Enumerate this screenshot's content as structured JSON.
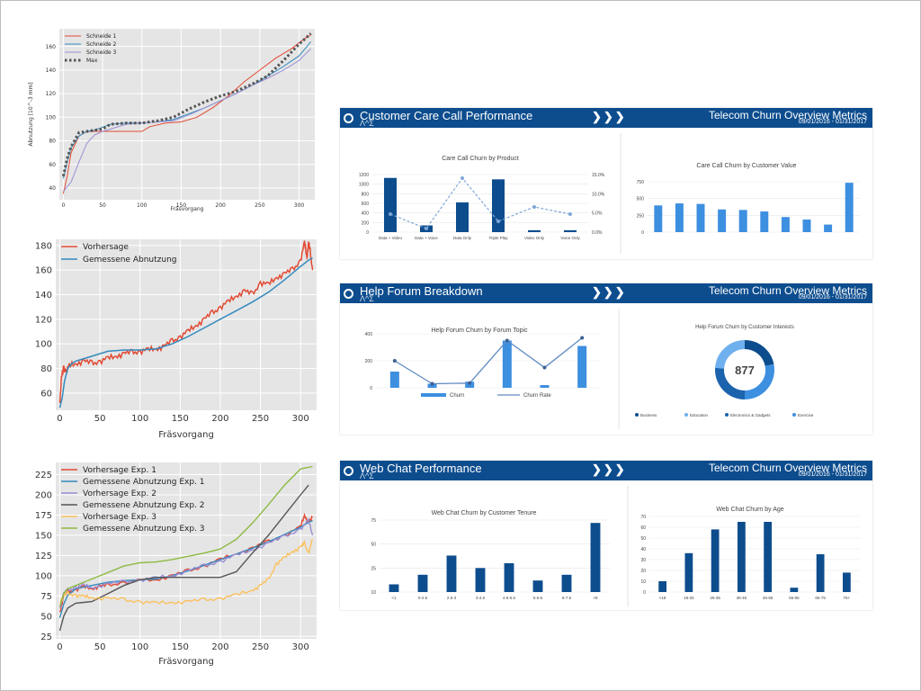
{
  "colors": {
    "plot_bg": "#e5e5e5",
    "grid": "#ffffff",
    "red": "#e24a33",
    "blue": "#348abd",
    "purple": "#988ed5",
    "gray": "#555555",
    "yellow": "#fbc15e",
    "green": "#8eba42",
    "dash_dark": "#0d4d8e",
    "dash_light": "#3d8fe0"
  },
  "chart_data": [
    {
      "type": "line",
      "xlabel": "Fräsvorgang",
      "ylabel": "Abnutzung [10^-3 mm]",
      "xlim": [
        -5,
        320
      ],
      "ylim": [
        30,
        175
      ],
      "xticks": [
        0,
        50,
        100,
        150,
        200,
        250,
        300
      ],
      "yticks": [
        40,
        60,
        80,
        100,
        120,
        140,
        160
      ],
      "legend": "top-left",
      "series": [
        {
          "name": "Schneide 1",
          "color": "red",
          "style": "solid",
          "x": [
            0,
            5,
            10,
            20,
            30,
            50,
            60,
            80,
            100,
            110,
            130,
            150,
            170,
            190,
            210,
            230,
            250,
            270,
            290,
            300,
            310,
            315
          ],
          "y": [
            35,
            50,
            70,
            84,
            88,
            88,
            88,
            88,
            88,
            92,
            95,
            96,
            100,
            108,
            118,
            130,
            140,
            150,
            158,
            163,
            168,
            170
          ]
        },
        {
          "name": "Schneide 2",
          "color": "blue",
          "style": "solid",
          "x": [
            0,
            5,
            10,
            20,
            30,
            40,
            60,
            80,
            100,
            120,
            140,
            160,
            180,
            200,
            220,
            240,
            260,
            280,
            300,
            310,
            315
          ],
          "y": [
            48,
            62,
            74,
            84,
            88,
            89,
            94,
            95,
            95,
            96,
            98,
            103,
            108,
            114,
            120,
            127,
            135,
            143,
            152,
            160,
            164
          ]
        },
        {
          "name": "Schneide 3",
          "color": "purple",
          "style": "solid",
          "x": [
            0,
            10,
            20,
            30,
            40,
            50,
            60,
            80,
            100,
            120,
            140,
            160,
            180,
            200,
            220,
            240,
            260,
            280,
            300,
            310,
            315
          ],
          "y": [
            37,
            45,
            62,
            78,
            85,
            88,
            90,
            94,
            95,
            96,
            97,
            102,
            108,
            114,
            120,
            127,
            133,
            140,
            148,
            155,
            158
          ]
        },
        {
          "name": "Max",
          "color": "gray",
          "style": "dots",
          "x": [
            0,
            5,
            10,
            20,
            30,
            50,
            60,
            80,
            100,
            120,
            140,
            160,
            180,
            200,
            210,
            220,
            240,
            260,
            280,
            290,
            300,
            310,
            315
          ],
          "y": [
            50,
            65,
            75,
            87,
            88,
            90,
            94,
            95,
            95,
            97,
            100,
            107,
            113,
            118,
            120,
            122,
            128,
            135,
            148,
            155,
            162,
            168,
            171
          ]
        }
      ]
    },
    {
      "type": "line",
      "xlabel": "Fräsvorgang",
      "xlim": [
        -5,
        320
      ],
      "ylim": [
        46,
        185
      ],
      "xticks": [
        0,
        50,
        100,
        150,
        200,
        250,
        300
      ],
      "yticks": [
        60,
        80,
        100,
        120,
        140,
        160,
        180
      ],
      "legend": "top-left",
      "series": [
        {
          "name": "Vorhersage",
          "color": "red",
          "style": "jagged",
          "x": [
            0,
            2,
            5,
            8,
            12,
            20,
            30,
            40,
            50,
            60,
            70,
            80,
            90,
            100,
            110,
            120,
            130,
            140,
            150,
            160,
            170,
            180,
            190,
            200,
            210,
            220,
            230,
            240,
            250,
            260,
            270,
            280,
            290,
            300,
            305,
            308,
            310,
            312,
            315
          ],
          "y": [
            52,
            72,
            80,
            78,
            82,
            84,
            86,
            84,
            86,
            88,
            90,
            92,
            93,
            94,
            95,
            96,
            98,
            102,
            106,
            110,
            115,
            120,
            125,
            130,
            134,
            139,
            143,
            140,
            150,
            148,
            154,
            157,
            160,
            168,
            182,
            170,
            182,
            175,
            160
          ]
        },
        {
          "name": "Gemessene Abnutzung",
          "color": "blue",
          "style": "solid",
          "x": [
            0,
            3,
            6,
            10,
            15,
            20,
            30,
            40,
            50,
            60,
            80,
            100,
            120,
            140,
            160,
            180,
            200,
            220,
            240,
            260,
            280,
            300,
            310,
            315
          ],
          "y": [
            48,
            56,
            70,
            80,
            84,
            86,
            88,
            90,
            92,
            94,
            95,
            95,
            96,
            100,
            106,
            113,
            120,
            127,
            134,
            142,
            152,
            163,
            168,
            170
          ]
        }
      ]
    },
    {
      "type": "line",
      "xlabel": "Fräsvorgang",
      "xlim": [
        -5,
        320
      ],
      "ylim": [
        22,
        240
      ],
      "xticks": [
        0,
        50,
        100,
        150,
        200,
        250,
        300
      ],
      "yticks": [
        25,
        50,
        75,
        100,
        125,
        150,
        175,
        200,
        225
      ],
      "legend": "top-left",
      "series": [
        {
          "name": "Vorhersage Exp. 1",
          "color": "red",
          "style": "jagged",
          "x": [
            0,
            5,
            10,
            20,
            30,
            40,
            50,
            60,
            80,
            100,
            120,
            140,
            160,
            180,
            200,
            220,
            240,
            260,
            280,
            300,
            305,
            310,
            315
          ],
          "y": [
            55,
            75,
            80,
            83,
            86,
            84,
            87,
            88,
            92,
            94,
            95,
            100,
            106,
            112,
            120,
            127,
            134,
            142,
            150,
            160,
            175,
            165,
            172
          ]
        },
        {
          "name": "Gemessene Abnutzung Exp. 1",
          "color": "blue",
          "style": "solid",
          "x": [
            0,
            5,
            10,
            20,
            30,
            40,
            60,
            80,
            100,
            120,
            140,
            160,
            180,
            200,
            220,
            240,
            260,
            280,
            300,
            310,
            315
          ],
          "y": [
            48,
            65,
            76,
            84,
            86,
            88,
            92,
            94,
            95,
            96,
            100,
            106,
            113,
            120,
            127,
            134,
            142,
            151,
            160,
            166,
            168
          ]
        },
        {
          "name": "Vorhersage Exp. 2",
          "color": "purple",
          "style": "jagged",
          "x": [
            0,
            5,
            10,
            20,
            30,
            40,
            60,
            80,
            100,
            120,
            140,
            160,
            180,
            200,
            220,
            240,
            260,
            280,
            300,
            310,
            315
          ],
          "y": [
            60,
            78,
            82,
            86,
            88,
            85,
            90,
            92,
            95,
            97,
            100,
            106,
            112,
            118,
            125,
            132,
            140,
            148,
            158,
            168,
            150
          ]
        },
        {
          "name": "Gemessene Abnutzung Exp. 2",
          "color": "gray",
          "style": "solid",
          "x": [
            0,
            5,
            10,
            20,
            30,
            40,
            60,
            80,
            100,
            120,
            140,
            160,
            180,
            200,
            220,
            240,
            260,
            280,
            300,
            310
          ],
          "y": [
            32,
            50,
            60,
            66,
            67,
            68,
            78,
            88,
            95,
            98,
            98,
            98,
            98,
            98,
            105,
            128,
            150,
            175,
            200,
            212
          ]
        },
        {
          "name": "Vorhersage Exp. 3",
          "color": "yellow",
          "style": "jagged",
          "x": [
            0,
            5,
            10,
            20,
            30,
            40,
            60,
            80,
            100,
            120,
            140,
            160,
            180,
            200,
            220,
            240,
            250,
            260,
            270,
            280,
            290,
            300,
            305,
            310,
            315
          ],
          "y": [
            68,
            75,
            78,
            76,
            74,
            73,
            72,
            70,
            68,
            66,
            67,
            68,
            70,
            72,
            76,
            82,
            88,
            95,
            115,
            122,
            130,
            135,
            140,
            128,
            145
          ]
        },
        {
          "name": "Gemessene Abnutzung Exp. 3",
          "color": "green",
          "style": "solid",
          "x": [
            0,
            5,
            10,
            20,
            30,
            40,
            60,
            80,
            100,
            120,
            140,
            160,
            180,
            200,
            220,
            240,
            260,
            280,
            300,
            315
          ],
          "y": [
            62,
            78,
            84,
            88,
            92,
            96,
            104,
            112,
            116,
            117,
            120,
            124,
            128,
            133,
            145,
            165,
            188,
            212,
            232,
            235
          ]
        }
      ]
    },
    {
      "type": "bar",
      "title": "Care Call Churn by Product",
      "categories": [
        "Data + Video",
        "Data + Voice",
        "Data Only",
        "Triple Play",
        "Video Only",
        "Voice Only"
      ],
      "values": [
        1130,
        140,
        620,
        1100,
        40,
        40
      ],
      "line": [
        0.05,
        0.01,
        0.15,
        0.03,
        0.07,
        0.05
      ],
      "yticks_left": [
        "0",
        "200",
        "400",
        "600",
        "800",
        "1000",
        "1200"
      ],
      "yticks_right": [
        "0.0%",
        "5.0%",
        "10.0%",
        "15.0%"
      ]
    },
    {
      "type": "bar",
      "title": "Care Call Churn by Customer Value",
      "values": [
        530,
        570,
        560,
        450,
        440,
        410,
        300,
        250,
        150,
        980
      ],
      "yticks": [
        "0",
        "250",
        "500",
        "750"
      ]
    },
    {
      "type": "bar",
      "title": "Help Forum Churn by Forum Topic",
      "values": [
        120,
        30,
        45,
        350,
        20,
        310
      ],
      "line": [
        200,
        30,
        35,
        350,
        150,
        370
      ],
      "legend": [
        "Churn",
        "Churn Rate"
      ],
      "yticks": [
        "0",
        "200",
        "400"
      ]
    },
    {
      "type": "pie",
      "title": "Help Forum Churn by Customer Interests",
      "center_value": "877",
      "legend": [
        "Business",
        "Education",
        "Electronics & Gadgets",
        "Exercise"
      ]
    },
    {
      "type": "bar",
      "title": "Web Chat Churn by Customer Tenure",
      "categories": [
        "<1",
        "0-2.5",
        "2.5-3",
        "3-4.5",
        "4.5-5.5",
        "5.5-6",
        "6-7.5",
        ">8"
      ],
      "values": [
        8,
        18,
        38,
        25,
        30,
        12,
        18,
        72
      ],
      "yticks": [
        "10",
        "25",
        "50",
        "75"
      ]
    },
    {
      "type": "bar",
      "title": "Web Chat Churn by Age",
      "categories": [
        "<18",
        "18-25",
        "26-35",
        "36-45",
        "46-55",
        "56-65",
        "66-75",
        "76+"
      ],
      "values": [
        10,
        36,
        58,
        65,
        65,
        4,
        35,
        18
      ],
      "yticks": [
        "0",
        "10",
        "20",
        "30",
        "40",
        "50",
        "60",
        "70"
      ]
    }
  ],
  "dashboards": [
    {
      "title": "Customer Care Call Performance",
      "sub": "Λ^Σ",
      "right": "Telecom Churn Overview Metrics",
      "date": "09/01/2016 - 01/31/2017",
      "chevrons": "❯❯❯"
    },
    {
      "title": "Help Forum Breakdown",
      "sub": "Λ^Σ",
      "right": "Telecom Churn Overview Metrics",
      "date": "09/01/2016 - 01/31/2017",
      "chevrons": "❯❯❯"
    },
    {
      "title": "Web Chat Performance",
      "sub": "Λ^Σ",
      "right": "Telecom Churn Overview Metrics",
      "date": "09/01/2016 - 01/31/2017",
      "chevrons": "❯❯❯"
    }
  ]
}
